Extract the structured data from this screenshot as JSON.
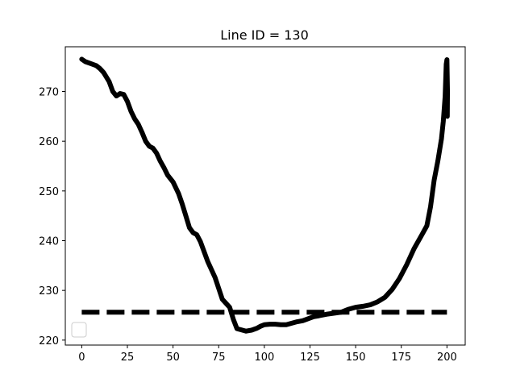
{
  "chart_data": {
    "type": "line",
    "title": "Line ID = 130",
    "xlabel": "",
    "ylabel": "",
    "xlim": [
      -9,
      210
    ],
    "ylim": [
      219,
      279
    ],
    "x_ticks": [
      0,
      25,
      50,
      75,
      100,
      125,
      150,
      175,
      200
    ],
    "y_ticks": [
      220,
      230,
      240,
      250,
      260,
      270
    ],
    "grid": false,
    "legend": {
      "placement": "lower-left",
      "entries": []
    },
    "series": [
      {
        "style": "solid",
        "color": "#000000",
        "x": [
          0,
          2,
          5,
          8,
          10,
          12,
          15,
          17,
          19,
          21,
          23,
          25,
          27,
          29,
          31,
          33,
          35,
          37,
          39,
          41,
          43,
          45,
          47,
          50,
          53,
          55,
          57,
          59,
          61,
          63,
          65,
          67,
          69,
          71,
          73,
          75,
          77,
          79,
          81,
          83,
          85,
          87,
          90,
          93,
          96,
          98,
          100,
          103,
          106,
          109,
          112,
          115,
          118,
          121,
          124,
          127,
          130,
          134,
          138,
          142,
          146,
          150,
          154,
          158,
          162,
          166,
          170,
          174,
          178,
          182,
          186,
          189,
          191,
          193,
          195,
          197,
          198,
          199,
          199.6,
          200,
          200.3,
          200.2
        ],
        "values": [
          276.5,
          276,
          275.6,
          275.2,
          274.6,
          273.8,
          272,
          270,
          269.1,
          269.6,
          269.4,
          268,
          266,
          264.5,
          263.4,
          261.8,
          260,
          259,
          258.6,
          257.6,
          256,
          254.7,
          253.2,
          251.8,
          249.5,
          247.4,
          245,
          242.6,
          241.6,
          241.2,
          239.8,
          237.8,
          235.8,
          234.2,
          232.6,
          230.4,
          228.2,
          227.4,
          226.6,
          224.2,
          222.3,
          222.1,
          221.8,
          222,
          222.4,
          222.8,
          223.1,
          223.2,
          223.2,
          223.1,
          223.1,
          223.4,
          223.7,
          223.9,
          224.3,
          224.7,
          224.9,
          225.2,
          225.4,
          225.6,
          226.2,
          226.6,
          226.8,
          227.1,
          227.7,
          228.6,
          230.2,
          232.4,
          235.2,
          238.4,
          241,
          243,
          246.8,
          252.2,
          256,
          260.5,
          264,
          269,
          275.5,
          276.4,
          270,
          265
        ]
      },
      {
        "style": "dashed",
        "color": "#000000",
        "x": [
          0,
          200
        ],
        "values": [
          225.6,
          225.6
        ]
      }
    ]
  }
}
